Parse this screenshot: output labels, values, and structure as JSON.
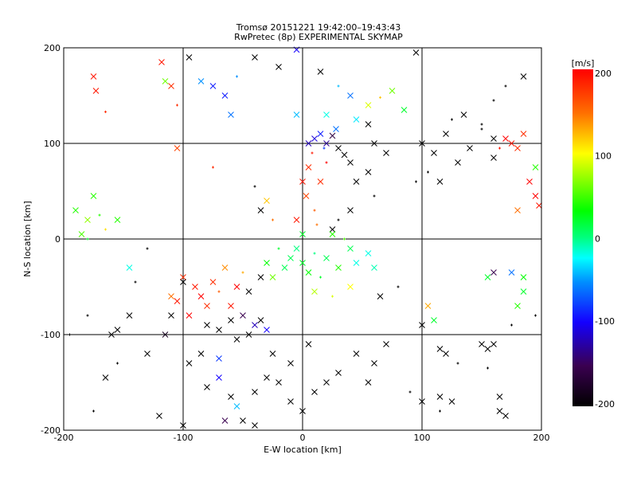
{
  "chart_data": {
    "type": "scatter",
    "title": "Tromsø 20151221 19:42:00–19:43:43",
    "subtitle": "RwPretec (8p) EXPERIMENTAL SKYMAP",
    "xlabel": "E-W location [km]",
    "ylabel": "N-S location [km]",
    "xlim": [
      -200,
      200
    ],
    "ylim": [
      -200,
      200
    ],
    "xticks": [
      "-200",
      "-100",
      "0",
      "100",
      "200"
    ],
    "yticks": [
      "-200",
      "-100",
      "0",
      "100",
      "200"
    ],
    "grid": true,
    "colorbar": {
      "label": "[m/s]",
      "range": [
        -200,
        200
      ],
      "ticks": [
        "200",
        "100",
        "0",
        "-100",
        "-200"
      ]
    },
    "point_format": [
      "x_km",
      "y_km",
      "velocity_m_s",
      "marker"
    ],
    "points": [
      [
        -175,
        170,
        190,
        "x"
      ],
      [
        -173,
        155,
        190,
        "x"
      ],
      [
        -165,
        133,
        180,
        "+"
      ],
      [
        -118,
        185,
        190,
        "x"
      ],
      [
        -115,
        165,
        60,
        "x"
      ],
      [
        -110,
        160,
        180,
        "x"
      ],
      [
        -105,
        140,
        180,
        "+"
      ],
      [
        -95,
        190,
        -200,
        "x"
      ],
      [
        -85,
        165,
        -50,
        "x"
      ],
      [
        -75,
        160,
        -90,
        "x"
      ],
      [
        -65,
        150,
        -90,
        "x"
      ],
      [
        -60,
        130,
        -60,
        "x"
      ],
      [
        -55,
        170,
        -50,
        "+"
      ],
      [
        -40,
        190,
        -200,
        "x"
      ],
      [
        -20,
        180,
        -200,
        "x"
      ],
      [
        -5,
        198,
        -100,
        "x"
      ],
      [
        15,
        175,
        -200,
        "x"
      ],
      [
        30,
        160,
        -40,
        "+"
      ],
      [
        40,
        150,
        -60,
        "x"
      ],
      [
        55,
        140,
        90,
        "x"
      ],
      [
        65,
        148,
        120,
        "+"
      ],
      [
        75,
        155,
        60,
        "x"
      ],
      [
        85,
        135,
        20,
        "x"
      ],
      [
        95,
        195,
        -200,
        "x"
      ],
      [
        -190,
        30,
        40,
        "x"
      ],
      [
        -180,
        20,
        70,
        "x"
      ],
      [
        -175,
        45,
        40,
        "x"
      ],
      [
        -170,
        25,
        40,
        "+"
      ],
      [
        -185,
        5,
        50,
        "x"
      ],
      [
        -180,
        0,
        20,
        "+"
      ],
      [
        -165,
        10,
        110,
        "+"
      ],
      [
        -155,
        20,
        40,
        "x"
      ],
      [
        -105,
        95,
        170,
        "x"
      ],
      [
        -75,
        75,
        180,
        "+"
      ],
      [
        -40,
        55,
        -200,
        "+"
      ],
      [
        -30,
        40,
        120,
        "x"
      ],
      [
        -25,
        20,
        150,
        "+"
      ],
      [
        -35,
        30,
        -200,
        "x"
      ],
      [
        0,
        60,
        190,
        "x"
      ],
      [
        5,
        75,
        180,
        "x"
      ],
      [
        8,
        90,
        190,
        "+"
      ],
      [
        3,
        45,
        170,
        "x"
      ],
      [
        10,
        30,
        160,
        "+"
      ],
      [
        15,
        60,
        180,
        "x"
      ],
      [
        20,
        80,
        200,
        "+"
      ],
      [
        -5,
        20,
        190,
        "x"
      ],
      [
        12,
        15,
        150,
        "+"
      ],
      [
        10,
        105,
        -110,
        "x"
      ],
      [
        15,
        110,
        -90,
        "x"
      ],
      [
        20,
        100,
        -130,
        "x"
      ],
      [
        25,
        108,
        -160,
        "x"
      ],
      [
        18,
        95,
        -80,
        "+"
      ],
      [
        30,
        95,
        -200,
        "x"
      ],
      [
        35,
        88,
        -200,
        "x"
      ],
      [
        40,
        80,
        -200,
        "x"
      ],
      [
        5,
        100,
        -120,
        "x"
      ],
      [
        28,
        115,
        -60,
        "x"
      ],
      [
        -5,
        130,
        -40,
        "x"
      ],
      [
        20,
        130,
        -20,
        "x"
      ],
      [
        45,
        125,
        -30,
        "x"
      ],
      [
        55,
        120,
        -200,
        "x"
      ],
      [
        60,
        100,
        -200,
        "x"
      ],
      [
        70,
        90,
        -200,
        "x"
      ],
      [
        45,
        60,
        -200,
        "x"
      ],
      [
        55,
        70,
        -200,
        "x"
      ],
      [
        60,
        45,
        -200,
        "+"
      ],
      [
        40,
        30,
        -200,
        "x"
      ],
      [
        30,
        20,
        -200,
        "+"
      ],
      [
        25,
        10,
        -200,
        "x"
      ],
      [
        100,
        100,
        -200,
        "x"
      ],
      [
        110,
        90,
        -200,
        "x"
      ],
      [
        120,
        110,
        -200,
        "x"
      ],
      [
        130,
        80,
        -200,
        "x"
      ],
      [
        140,
        95,
        -200,
        "x"
      ],
      [
        150,
        115,
        -200,
        "+"
      ],
      [
        160,
        105,
        -200,
        "x"
      ],
      [
        175,
        100,
        190,
        "x"
      ],
      [
        170,
        105,
        200,
        "x"
      ],
      [
        180,
        95,
        180,
        "x"
      ],
      [
        165,
        95,
        190,
        "+"
      ],
      [
        185,
        110,
        180,
        "x"
      ],
      [
        190,
        60,
        200,
        "x"
      ],
      [
        195,
        45,
        200,
        "x"
      ],
      [
        198,
        35,
        190,
        "x"
      ],
      [
        180,
        30,
        150,
        "x"
      ],
      [
        195,
        75,
        40,
        "x"
      ],
      [
        150,
        120,
        -200,
        "+"
      ],
      [
        135,
        130,
        -200,
        "x"
      ],
      [
        125,
        125,
        -200,
        "+"
      ],
      [
        105,
        70,
        -200,
        "+"
      ],
      [
        115,
        60,
        -200,
        "x"
      ],
      [
        95,
        60,
        -200,
        "+"
      ],
      [
        160,
        85,
        -200,
        "x"
      ],
      [
        185,
        170,
        -200,
        "x"
      ],
      [
        170,
        160,
        -200,
        "+"
      ],
      [
        160,
        145,
        -200,
        "+"
      ],
      [
        -10,
        -20,
        10,
        "x"
      ],
      [
        0,
        -25,
        20,
        "x"
      ],
      [
        10,
        -15,
        0,
        "+"
      ],
      [
        -15,
        -30,
        10,
        "x"
      ],
      [
        5,
        -35,
        30,
        "x"
      ],
      [
        20,
        -20,
        10,
        "x"
      ],
      [
        -20,
        -10,
        20,
        "+"
      ],
      [
        30,
        -30,
        40,
        "x"
      ],
      [
        -5,
        -10,
        0,
        "x"
      ],
      [
        15,
        -40,
        20,
        "+"
      ],
      [
        40,
        -10,
        10,
        "x"
      ],
      [
        45,
        -25,
        -20,
        "x"
      ],
      [
        55,
        -15,
        -20,
        "x"
      ],
      [
        60,
        -30,
        -10,
        "x"
      ],
      [
        -30,
        -25,
        30,
        "x"
      ],
      [
        25,
        5,
        40,
        "x"
      ],
      [
        35,
        0,
        50,
        "+"
      ],
      [
        0,
        5,
        20,
        "x"
      ],
      [
        -25,
        -40,
        60,
        "x"
      ],
      [
        10,
        -55,
        80,
        "x"
      ],
      [
        25,
        -60,
        90,
        "+"
      ],
      [
        40,
        -50,
        100,
        "x"
      ],
      [
        -100,
        -40,
        180,
        "x"
      ],
      [
        -90,
        -50,
        190,
        "x"
      ],
      [
        -85,
        -60,
        200,
        "x"
      ],
      [
        -75,
        -45,
        180,
        "x"
      ],
      [
        -70,
        -55,
        160,
        "+"
      ],
      [
        -65,
        -30,
        140,
        "x"
      ],
      [
        -55,
        -50,
        200,
        "x"
      ],
      [
        -60,
        -70,
        190,
        "x"
      ],
      [
        -80,
        -70,
        180,
        "x"
      ],
      [
        -95,
        -80,
        200,
        "x"
      ],
      [
        -105,
        -65,
        190,
        "x"
      ],
      [
        -110,
        -60,
        150,
        "x"
      ],
      [
        -50,
        -35,
        130,
        "+"
      ],
      [
        -80,
        -90,
        -200,
        "x"
      ],
      [
        -70,
        -95,
        -200,
        "x"
      ],
      [
        -60,
        -85,
        -200,
        "x"
      ],
      [
        -50,
        -80,
        -150,
        "x"
      ],
      [
        -40,
        -90,
        -120,
        "x"
      ],
      [
        -35,
        -85,
        -200,
        "x"
      ],
      [
        -45,
        -100,
        -200,
        "x"
      ],
      [
        -110,
        -80,
        -200,
        "x"
      ],
      [
        -115,
        -100,
        -180,
        "x"
      ],
      [
        -55,
        -105,
        -200,
        "x"
      ],
      [
        -30,
        -95,
        -100,
        "x"
      ],
      [
        -100,
        -45,
        -200,
        "x"
      ],
      [
        -45,
        -55,
        -200,
        "x"
      ],
      [
        -35,
        -40,
        -200,
        "x"
      ],
      [
        -160,
        -100,
        -200,
        "x"
      ],
      [
        -155,
        -95,
        -200,
        "x"
      ],
      [
        -145,
        -80,
        -200,
        "x"
      ],
      [
        -130,
        -120,
        -200,
        "x"
      ],
      [
        -165,
        -145,
        -200,
        "x"
      ],
      [
        -120,
        -185,
        -200,
        "x"
      ],
      [
        -100,
        -195,
        -200,
        "x"
      ],
      [
        -95,
        -130,
        -200,
        "x"
      ],
      [
        -80,
        -155,
        -200,
        "x"
      ],
      [
        -70,
        -145,
        -100,
        "x"
      ],
      [
        -60,
        -165,
        -200,
        "x"
      ],
      [
        -55,
        -175,
        -40,
        "x"
      ],
      [
        -50,
        -190,
        -200,
        "x"
      ],
      [
        -40,
        -160,
        -200,
        "x"
      ],
      [
        -30,
        -145,
        -200,
        "x"
      ],
      [
        -20,
        -150,
        -200,
        "x"
      ],
      [
        -10,
        -170,
        -200,
        "x"
      ],
      [
        0,
        -180,
        -200,
        "x"
      ],
      [
        10,
        -160,
        -200,
        "x"
      ],
      [
        20,
        -150,
        -200,
        "x"
      ],
      [
        30,
        -140,
        -200,
        "x"
      ],
      [
        -25,
        -120,
        -200,
        "x"
      ],
      [
        -10,
        -130,
        -200,
        "x"
      ],
      [
        5,
        -110,
        -200,
        "x"
      ],
      [
        -70,
        -125,
        -80,
        "x"
      ],
      [
        -85,
        -120,
        -200,
        "x"
      ],
      [
        -65,
        -190,
        -150,
        "x"
      ],
      [
        -40,
        -195,
        -200,
        "x"
      ],
      [
        45,
        -120,
        -200,
        "x"
      ],
      [
        60,
        -130,
        -200,
        "x"
      ],
      [
        55,
        -150,
        -200,
        "x"
      ],
      [
        70,
        -110,
        -200,
        "x"
      ],
      [
        100,
        -90,
        -200,
        "x"
      ],
      [
        105,
        -70,
        130,
        "x"
      ],
      [
        110,
        -85,
        20,
        "x"
      ],
      [
        65,
        -60,
        -200,
        "x"
      ],
      [
        80,
        -50,
        -200,
        "+"
      ],
      [
        90,
        -160,
        -200,
        "+"
      ],
      [
        100,
        -170,
        -200,
        "x"
      ],
      [
        115,
        -180,
        -200,
        "+"
      ],
      [
        150,
        -110,
        -200,
        "x"
      ],
      [
        155,
        -115,
        -200,
        "x"
      ],
      [
        160,
        -110,
        -200,
        "x"
      ],
      [
        120,
        -120,
        -200,
        "x"
      ],
      [
        115,
        -115,
        -200,
        "x"
      ],
      [
        130,
        -130,
        -200,
        "+"
      ],
      [
        115,
        -165,
        -200,
        "x"
      ],
      [
        125,
        -170,
        -200,
        "x"
      ],
      [
        155,
        -135,
        -200,
        "+"
      ],
      [
        165,
        -165,
        -200,
        "x"
      ],
      [
        165,
        -180,
        -200,
        "x"
      ],
      [
        170,
        -185,
        -200,
        "x"
      ],
      [
        160,
        -35,
        -150,
        "x"
      ],
      [
        155,
        -40,
        20,
        "x"
      ],
      [
        175,
        -35,
        -60,
        "x"
      ],
      [
        185,
        -40,
        30,
        "x"
      ],
      [
        185,
        -55,
        20,
        "x"
      ],
      [
        180,
        -70,
        40,
        "x"
      ],
      [
        195,
        -80,
        -200,
        "+"
      ],
      [
        175,
        -90,
        -200,
        "+"
      ],
      [
        -145,
        -30,
        -20,
        "x"
      ],
      [
        -180,
        -80,
        -200,
        "+"
      ],
      [
        -195,
        -100,
        -200,
        "+"
      ],
      [
        -155,
        -130,
        -200,
        "+"
      ],
      [
        -175,
        -180,
        -200,
        "+"
      ],
      [
        -130,
        -10,
        -200,
        "+"
      ],
      [
        -140,
        -45,
        -200,
        "+"
      ]
    ]
  }
}
